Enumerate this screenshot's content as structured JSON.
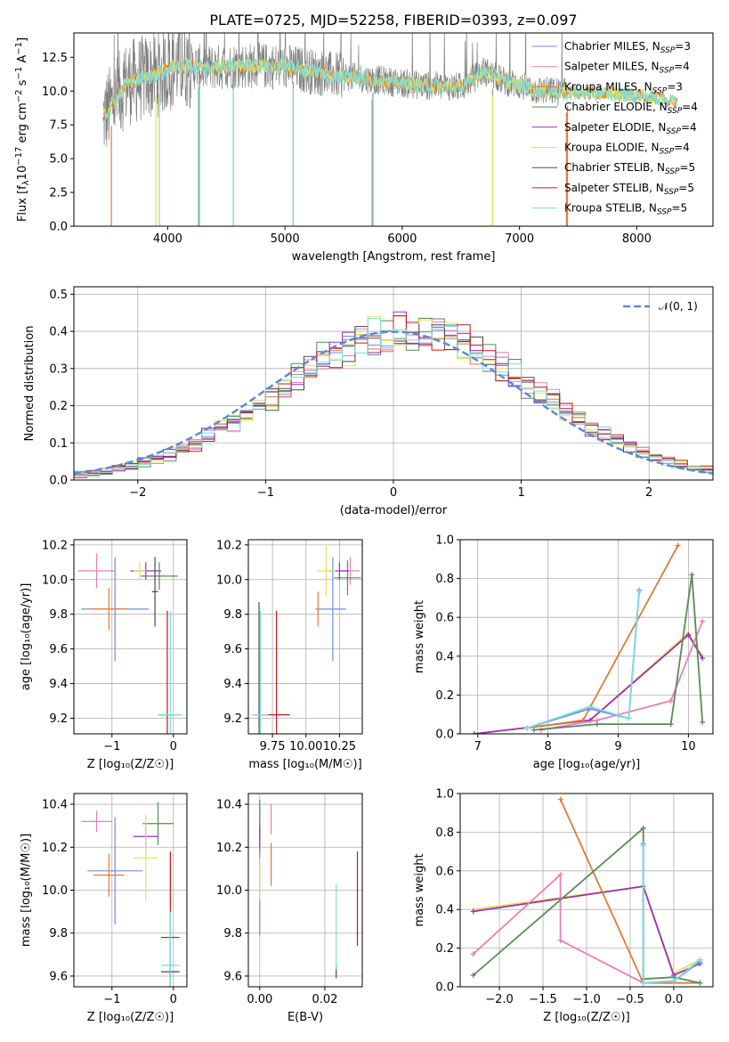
{
  "title": "PLATE=0725, MJD=52258, FIBERID=0393, z=0.097",
  "models": [
    {
      "name": "Chabrier MILES, N",
      "sub": "SSP",
      "tail": "=3",
      "color": "#6f8fe0"
    },
    {
      "name": "Salpeter MILES, N",
      "sub": "SSP",
      "tail": "=4",
      "color": "#e87fba"
    },
    {
      "name": "Kroupa MILES, N",
      "sub": "SSP",
      "tail": "=3",
      "color": "#e07b39"
    },
    {
      "name": "Chabrier ELODIE, N",
      "sub": "SSP",
      "tail": "=4",
      "color": "#5a8a5a"
    },
    {
      "name": "Salpeter ELODIE, N",
      "sub": "SSP",
      "tail": "=4",
      "color": "#9a30c0"
    },
    {
      "name": "Kroupa ELODIE, N",
      "sub": "SSP",
      "tail": "=4",
      "color": "#e3e35a"
    },
    {
      "name": "Chabrier STELIB, N",
      "sub": "SSP",
      "tail": "=5",
      "color": "#4a4a4a"
    },
    {
      "name": "Salpeter STELIB, N",
      "sub": "SSP",
      "tail": "=5",
      "color": "#c01818"
    },
    {
      "name": "Kroupa STELIB, N",
      "sub": "SSP",
      "tail": "=5",
      "color": "#7fdcdc"
    }
  ],
  "chart_data": [
    {
      "id": "spectrum",
      "type": "line",
      "xlabel": "wavelength [Angstrom, rest frame]",
      "ylabel_parts": [
        "Flux [f",
        "λ",
        "10",
        "−17",
        " erg cm",
        "−2",
        " s",
        "−1",
        " A",
        "−1",
        "]"
      ],
      "xlim": [
        3200,
        8650
      ],
      "ylim": [
        0,
        14.3
      ],
      "xticks": [
        4000,
        5000,
        6000,
        7000,
        8000
      ],
      "yticks": [
        0.0,
        2.5,
        5.0,
        7.5,
        10.0,
        12.5
      ],
      "data_color": "#808080",
      "model_color": "#7fdcdc",
      "model_orange_color": "#e07b39",
      "data_x_range": [
        3450,
        7400
      ],
      "model_x_range": [
        3450,
        8350
      ],
      "profile": [
        [
          3450,
          8.0
        ],
        [
          3650,
          10.6
        ],
        [
          3900,
          11.2
        ],
        [
          4100,
          12.0
        ],
        [
          4300,
          11.7
        ],
        [
          4600,
          11.9
        ],
        [
          5000,
          11.8
        ],
        [
          5400,
          11.2
        ],
        [
          5800,
          10.8
        ],
        [
          6200,
          10.4
        ],
        [
          6500,
          10.3
        ],
        [
          6700,
          11.5
        ],
        [
          6850,
          10.8
        ],
        [
          7100,
          10.1
        ],
        [
          7400,
          9.9
        ],
        [
          7800,
          9.8
        ],
        [
          8100,
          9.6
        ],
        [
          8350,
          9.2
        ]
      ],
      "absorption_lines": [
        3520,
        3900,
        3930,
        4260,
        4560,
        5070,
        5740,
        6770,
        7400
      ],
      "data_spikes_down": [
        4270,
        4560,
        5070,
        5750,
        6770,
        7410
      ]
    },
    {
      "id": "residuals",
      "type": "step-histogram",
      "xlabel": "(data-model)/error",
      "ylabel": "Normed distribution",
      "xlim": [
        -2.5,
        2.5
      ],
      "ylim": [
        0,
        0.52
      ],
      "xticks": [
        -2,
        -1,
        0,
        1,
        2
      ],
      "yticks": [
        0.0,
        0.1,
        0.2,
        0.3,
        0.4,
        0.5
      ],
      "bin_width": 0.1,
      "legend": "𝒩(0, 1)",
      "normal_color": "#5b8bd6"
    },
    {
      "id": "age-vs-Z",
      "type": "errorbar",
      "xlabel": "Z [log₁₀(Z/Z☉)]",
      "ylabel": "age  [log₁₀(age/yr)]",
      "xlim": [
        -1.62,
        0.22
      ],
      "ylim": [
        9.11,
        10.23
      ],
      "xticks": [
        -1,
        0
      ],
      "yticks": [
        9.2,
        9.4,
        9.6,
        9.8,
        10.0,
        10.2
      ],
      "points": [
        {
          "m": 0,
          "x": -0.95,
          "y": 9.83,
          "xe": 0.55,
          "ye": 0.3
        },
        {
          "m": 1,
          "x": -1.25,
          "y": 10.05,
          "xe": 0.3,
          "ye": 0.1
        },
        {
          "m": 2,
          "x": -1.05,
          "y": 9.83,
          "xe": 0.3,
          "ye": 0.12
        },
        {
          "m": 3,
          "x": -0.23,
          "y": 10.02,
          "xe": 0.3,
          "ye": 0.08
        },
        {
          "m": 4,
          "x": -0.45,
          "y": 10.05,
          "xe": 0.25,
          "ye": 0.05
        },
        {
          "m": 5,
          "x": -0.55,
          "y": 10.05,
          "xe": 0.1,
          "ye": 0.05
        },
        {
          "m": 6,
          "x": -0.3,
          "y": 9.93,
          "xe": 0.05,
          "ye": 0.2
        },
        {
          "m": 7,
          "x": -0.1,
          "y": 9.22,
          "xe": 0.15,
          "ye": 0.6
        },
        {
          "m": 8,
          "x": -0.05,
          "y": 9.22,
          "xe": 0.2,
          "ye": 0.6
        }
      ]
    },
    {
      "id": "age-vs-mass",
      "type": "errorbar",
      "xlabel": "mass [log₁₀(M/M☉)]",
      "ylabel": "",
      "xlim": [
        9.57,
        10.42
      ],
      "ylim": [
        9.11,
        10.23
      ],
      "xticks": [
        9.75,
        10.0,
        10.25
      ],
      "xtick_labels": [
        "9.75",
        "10.00",
        "10.25"
      ],
      "yticks": [
        9.2,
        9.4,
        9.6,
        9.8,
        10.0,
        10.2
      ],
      "points": [
        {
          "m": 0,
          "x": 10.2,
          "y": 9.83,
          "xe": 0.1,
          "ye": 0.3
        },
        {
          "m": 1,
          "x": 10.33,
          "y": 10.05,
          "xe": 0.07,
          "ye": 0.08
        },
        {
          "m": 2,
          "x": 10.09,
          "y": 9.83,
          "xe": 0.02,
          "ye": 0.1
        },
        {
          "m": 3,
          "x": 10.31,
          "y": 10.01,
          "xe": 0.1,
          "ye": 0.1
        },
        {
          "m": 4,
          "x": 10.25,
          "y": 10.05,
          "xe": 0.07,
          "ye": 0.05
        },
        {
          "m": 5,
          "x": 10.15,
          "y": 10.05,
          "xe": 0.07,
          "ye": 0.15
        },
        {
          "m": 6,
          "x": 9.65,
          "y": 9.22,
          "xe": 0.05,
          "ye": 0.65
        },
        {
          "m": 7,
          "x": 9.78,
          "y": 9.22,
          "xe": 0.1,
          "ye": 0.6
        },
        {
          "m": 8,
          "x": 9.66,
          "y": 9.22,
          "xe": 0.06,
          "ye": 0.6
        }
      ]
    },
    {
      "id": "weight-vs-age",
      "type": "line",
      "xlabel": "age  [log₁₀(age/yr)]",
      "ylabel": "mass weight",
      "xlim": [
        6.75,
        10.35
      ],
      "ylim": [
        0,
        1.0
      ],
      "xticks": [
        7,
        8,
        9,
        10
      ],
      "yticks": [
        0.0,
        0.2,
        0.4,
        0.6,
        0.8,
        1.0
      ],
      "series": [
        {
          "m": 5,
          "x": [
            6.95,
            8.6,
            10.0,
            10.2
          ],
          "y": [
            0.0,
            0.07,
            0.52,
            0.4
          ]
        },
        {
          "m": 4,
          "x": [
            6.95,
            8.6,
            10.0,
            10.2
          ],
          "y": [
            0.0,
            0.07,
            0.51,
            0.39
          ]
        },
        {
          "m": 2,
          "x": [
            7.7,
            8.5,
            9.85
          ],
          "y": [
            0.03,
            0.07,
            0.97
          ]
        },
        {
          "m": 1,
          "x": [
            7.9,
            8.7,
            9.75,
            10.2
          ],
          "y": [
            0.02,
            0.07,
            0.17,
            0.58
          ]
        },
        {
          "m": 3,
          "x": [
            7.8,
            8.7,
            9.75,
            10.05,
            10.2
          ],
          "y": [
            0.02,
            0.05,
            0.05,
            0.82,
            0.06
          ]
        },
        {
          "m": 0,
          "x": [
            7.7,
            8.6,
            9.15,
            9.3
          ],
          "y": [
            0.03,
            0.13,
            0.08,
            0.74
          ]
        },
        {
          "m": 8,
          "x": [
            7.7,
            8.6,
            9.15,
            9.3
          ],
          "y": [
            0.03,
            0.14,
            0.08,
            0.73
          ]
        }
      ]
    },
    {
      "id": "mass-vs-Z",
      "type": "errorbar",
      "xlabel": "Z [log₁₀(Z/Z☉)]",
      "ylabel": "mass [log₁₀(M/M☉)]",
      "xlim": [
        -1.62,
        0.22
      ],
      "ylim": [
        9.55,
        10.45
      ],
      "xticks": [
        -1,
        0
      ],
      "yticks": [
        9.6,
        9.8,
        10.0,
        10.2,
        10.4
      ],
      "points": [
        {
          "m": 0,
          "x": -0.95,
          "y": 10.09,
          "xe": 0.45,
          "ye": 0.25
        },
        {
          "m": 1,
          "x": -1.25,
          "y": 10.32,
          "xe": 0.25,
          "ye": 0.05
        },
        {
          "m": 2,
          "x": -1.05,
          "y": 10.07,
          "xe": 0.25,
          "ye": 0.1
        },
        {
          "m": 3,
          "x": -0.25,
          "y": 10.31,
          "xe": 0.25,
          "ye": 0.1
        },
        {
          "m": 4,
          "x": -0.45,
          "y": 10.25,
          "xe": 0.2,
          "ye": 0.05
        },
        {
          "m": 5,
          "x": -0.45,
          "y": 10.15,
          "xe": 0.2,
          "ye": 0.2
        },
        {
          "m": 6,
          "x": -0.05,
          "y": 9.62,
          "xe": 0.15,
          "ye": 0.03
        },
        {
          "m": 7,
          "x": -0.05,
          "y": 9.78,
          "xe": 0.15,
          "ye": 0.4
        },
        {
          "m": 8,
          "x": -0.05,
          "y": 9.65,
          "xe": 0.15,
          "ye": 0.25
        }
      ]
    },
    {
      "id": "mass-vs-ebv",
      "type": "errorbar",
      "xlabel": "E(B-V)",
      "ylabel": "",
      "xlim": [
        -0.0035,
        0.0315
      ],
      "ylim": [
        9.55,
        10.45
      ],
      "xticks": [
        0.0,
        0.02
      ],
      "xtick_labels": [
        "0.00",
        "0.02"
      ],
      "yticks": [
        9.6,
        9.8,
        10.0,
        10.2,
        10.4
      ],
      "points": [
        {
          "m": 0,
          "x": 0.0,
          "y": 10.09,
          "xe": 0,
          "ye": 0.3
        },
        {
          "m": 1,
          "x": 0.0035,
          "y": 10.33,
          "xe": 0,
          "ye": 0.07
        },
        {
          "m": 2,
          "x": 0.0035,
          "y": 10.12,
          "xe": 0,
          "ye": 0.1
        },
        {
          "m": 3,
          "x": 0.0,
          "y": 10.3,
          "xe": 0,
          "ye": 0.12
        },
        {
          "m": 4,
          "x": 0.0,
          "y": 10.25,
          "xe": 0,
          "ye": 0.05
        },
        {
          "m": 5,
          "x": 0.0,
          "y": 10.05,
          "xe": 0,
          "ye": 0.1
        },
        {
          "m": 6,
          "x": 0.0235,
          "y": 9.62,
          "xe": 0,
          "ye": 0.03
        },
        {
          "m": 7,
          "x": 0.03,
          "y": 9.96,
          "xe": 0,
          "ye": 0.22
        },
        {
          "m": 8,
          "x": 0.0235,
          "y": 9.83,
          "xe": 0,
          "ye": 0.2
        }
      ]
    },
    {
      "id": "weight-vs-Z",
      "type": "line",
      "xlabel": "Z [log₁₀(Z/Z☉)]",
      "ylabel": "mass weight",
      "xlim": [
        -2.45,
        0.45
      ],
      "ylim": [
        0,
        1.0
      ],
      "xticks": [
        -2.0,
        -1.5,
        -1.0,
        -0.5,
        0.0
      ],
      "xtick_labels": [
        "−2.0",
        "−1.5",
        "−1.0",
        "−0.5",
        "0.0"
      ],
      "yticks": [
        0.0,
        0.2,
        0.4,
        0.6,
        0.8,
        1.0
      ],
      "series": [
        {
          "m": 5,
          "x": [
            -2.3,
            -0.35,
            0.0,
            0.3
          ],
          "y": [
            0.4,
            0.52,
            0.07,
            0.14
          ]
        },
        {
          "m": 4,
          "x": [
            -2.3,
            -0.35,
            0.0,
            0.3
          ],
          "y": [
            0.39,
            0.52,
            0.06,
            0.12
          ]
        },
        {
          "m": 2,
          "x": [
            -1.3,
            -0.35,
            0.3
          ],
          "y": [
            0.97,
            0.02,
            0.02
          ]
        },
        {
          "m": 1,
          "x": [
            -2.3,
            -1.3,
            -1.3,
            -0.35
          ],
          "y": [
            0.17,
            0.58,
            0.24,
            0.02
          ]
        },
        {
          "m": 3,
          "x": [
            -2.3,
            -0.35,
            -0.35,
            0.0,
            0.3
          ],
          "y": [
            0.06,
            0.82,
            0.04,
            0.05,
            0.02
          ]
        },
        {
          "m": 0,
          "x": [
            -0.35,
            -0.35,
            0.0,
            0.3
          ],
          "y": [
            0.74,
            0.02,
            0.03,
            0.13
          ]
        },
        {
          "m": 8,
          "x": [
            -0.35,
            -0.35,
            0.0,
            0.3
          ],
          "y": [
            0.73,
            0.02,
            0.03,
            0.14
          ]
        }
      ]
    }
  ]
}
